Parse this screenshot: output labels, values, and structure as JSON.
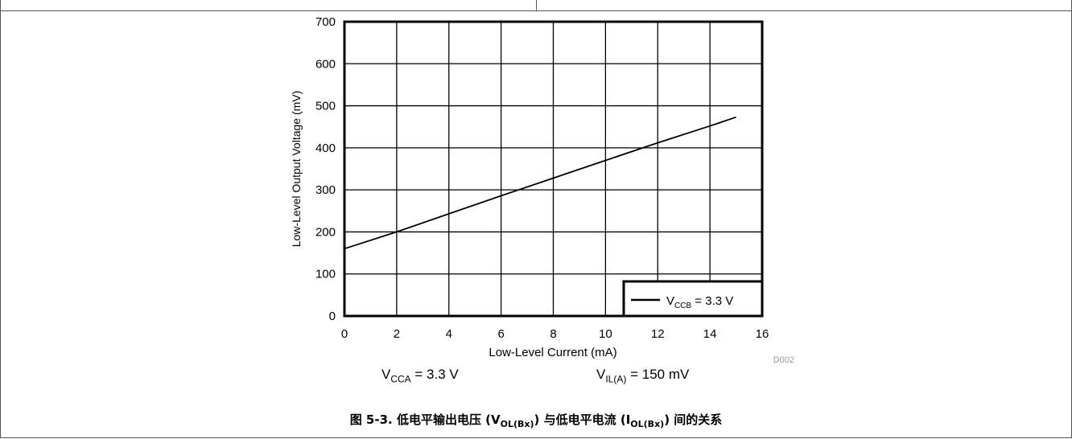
{
  "chart_data": {
    "type": "line",
    "title": "",
    "xlabel": "Low-Level Current (mA)",
    "ylabel": "Low-Level Output Voltage (mV)",
    "xlim": [
      0,
      16
    ],
    "ylim": [
      0,
      700
    ],
    "x_ticks": [
      "0",
      "2",
      "4",
      "6",
      "8",
      "10",
      "12",
      "14",
      "16"
    ],
    "y_ticks": [
      "0",
      "100",
      "200",
      "300",
      "400",
      "500",
      "600",
      "700"
    ],
    "grid": true,
    "legend_position": "bottom-right",
    "series": [
      {
        "name_main": "V",
        "name_sub": "CCB",
        "name_rest": " = 3.3 V",
        "color": "#000000",
        "x": [
          0,
          2,
          4,
          6,
          8,
          10,
          12,
          14,
          15
        ],
        "y": [
          160,
          200,
          243,
          286,
          328,
          370,
          412,
          452,
          473
        ]
      }
    ],
    "figure_id": "D002"
  },
  "conditions": {
    "vcca_main": "V",
    "vcca_sub": "CCA",
    "vcca_rest": " = 3.3 V",
    "vil_main": "V",
    "vil_sub": "IL(A)",
    "vil_rest": " = 150 mV"
  },
  "caption": {
    "prefix": "图 5-3. 低电平输出电压 (V",
    "sub1": "OL(Bx)",
    "middle": ") 与低电平电流 (I",
    "sub2": "OL(Bx)",
    "suffix": ") 间的关系"
  }
}
